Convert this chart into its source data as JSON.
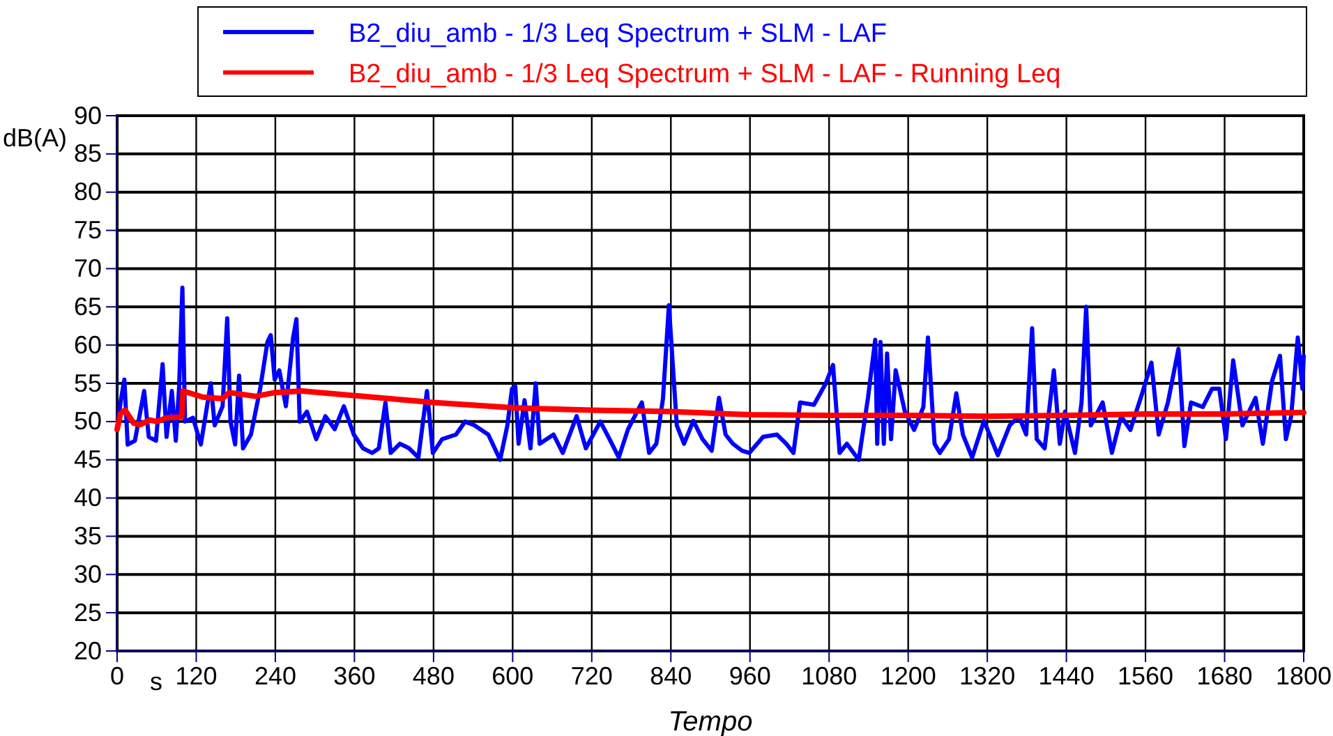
{
  "chart_data": {
    "type": "line",
    "xlabel": "Tempo",
    "ylabel": "dB(A)",
    "annotations": [
      "s"
    ],
    "xlim": [
      0,
      1800
    ],
    "xticks": [
      0,
      120,
      240,
      360,
      480,
      600,
      720,
      840,
      960,
      1080,
      1200,
      1320,
      1440,
      1560,
      1680,
      1800
    ],
    "ylim": [
      20,
      90
    ],
    "yticks": [
      20,
      25,
      30,
      35,
      40,
      45,
      50,
      55,
      60,
      65,
      70,
      75,
      80,
      85,
      90
    ],
    "grid": true,
    "legend": "top",
    "line_style": "solid",
    "marker": "none",
    "series": [
      {
        "name": "B2_diu_amb - 1/3 Leq Spectrum + SLM - LAF",
        "color": "#0000ff",
        "x": [
          0,
          6,
          11,
          16,
          27,
          41,
          48,
          59,
          69,
          75,
          83,
          89,
          94,
          99,
          103,
          115,
          127,
          142,
          148,
          160,
          167,
          172,
          179,
          185,
          191,
          203,
          217,
          228,
          233,
          239,
          246,
          256,
          267,
          272,
          277,
          288,
          302,
          316,
          330,
          344,
          359,
          373,
          387,
          397,
          407,
          415,
          429,
          443,
          457,
          470,
          479,
          493,
          514,
          528,
          542,
          563,
          581,
          592,
          599,
          604,
          609,
          618,
          627,
          635,
          641,
          662,
          676,
          697,
          711,
          733,
          747,
          761,
          775,
          796,
          807,
          818,
          828,
          837,
          849,
          860,
          874,
          888,
          902,
          913,
          923,
          934,
          948,
          959,
          980,
          1001,
          1015,
          1026,
          1036,
          1057,
          1075,
          1086,
          1096,
          1107,
          1125,
          1139,
          1150,
          1153,
          1158,
          1163,
          1168,
          1174,
          1181,
          1195,
          1209,
          1223,
          1230,
          1240,
          1248,
          1262,
          1273,
          1283,
          1297,
          1315,
          1336,
          1354,
          1368,
          1379,
          1388,
          1395,
          1407,
          1421,
          1430,
          1438,
          1453,
          1463,
          1470,
          1477,
          1495,
          1509,
          1523,
          1537,
          1555,
          1569,
          1580,
          1594,
          1610,
          1619,
          1629,
          1647,
          1661,
          1672,
          1682,
          1693,
          1707,
          1727,
          1738,
          1752,
          1764,
          1773,
          1781,
          1791,
          1798,
          1800
        ],
        "values": [
          49,
          53,
          55.5,
          47,
          47.5,
          54,
          48,
          47.5,
          57.5,
          48,
          54,
          47.5,
          54.5,
          67.5,
          50,
          50.5,
          47,
          55,
          49.5,
          52,
          63.5,
          50,
          47,
          56,
          46.5,
          48.3,
          54.3,
          60.4,
          61.3,
          55.5,
          56.7,
          52,
          61,
          63.4,
          50,
          51.3,
          47.7,
          50.7,
          49,
          52,
          48.3,
          46.5,
          45.9,
          46.5,
          52.5,
          45.9,
          47.1,
          46.5,
          45.3,
          54,
          45.9,
          47.7,
          48.3,
          50,
          49.5,
          48.3,
          45,
          49.5,
          54.3,
          54.6,
          47.1,
          52.8,
          46.5,
          55,
          47.1,
          48.3,
          45.9,
          50.7,
          46.5,
          50,
          47.7,
          45.3,
          49,
          52.5,
          45.9,
          47.1,
          53,
          65.2,
          49.5,
          47.1,
          50.1,
          47.7,
          46.2,
          53.1,
          48.3,
          47.1,
          46.2,
          45.9,
          48,
          48.3,
          47.1,
          45.9,
          52.5,
          52.2,
          55,
          57.4,
          45.9,
          47.1,
          45,
          53.1,
          60.7,
          47.1,
          60.4,
          47.1,
          58.9,
          47.7,
          56.7,
          51.3,
          48.9,
          51.9,
          61,
          47.1,
          45.9,
          47.7,
          53.7,
          48.3,
          45.3,
          50.1,
          45.6,
          49.5,
          50.7,
          48.3,
          62.2,
          47.7,
          46.5,
          56.7,
          47.1,
          51.3,
          45.9,
          52.5,
          65,
          49.5,
          52.5,
          45.9,
          50.7,
          48.9,
          53.7,
          57.7,
          48.3,
          52.5,
          59.5,
          46.8,
          52.5,
          51.9,
          54.3,
          54.3,
          47.7,
          58,
          49.5,
          53.1,
          47.1,
          55.3,
          58.6,
          47.7,
          50.7,
          61,
          54.3,
          58.6
        ]
      },
      {
        "name": "B2_diu_amb - 1/3 Leq Spectrum + SLM - LAF - Running Leq",
        "color": "#ff0000",
        "x": [
          0,
          5,
          12,
          25,
          35,
          50,
          60,
          75,
          98,
          100,
          130,
          160,
          170,
          210,
          240,
          280,
          480,
          600,
          720,
          840,
          960,
          1080,
          1200,
          1320,
          1440,
          1560,
          1680,
          1800
        ],
        "values": [
          49,
          51,
          51.5,
          49.8,
          49.6,
          50.2,
          50,
          50.5,
          50.6,
          54,
          53.2,
          53,
          53.8,
          53.3,
          53.8,
          54,
          52.5,
          51.8,
          51.5,
          51.3,
          50.9,
          50.8,
          50.8,
          50.7,
          50.8,
          51,
          51,
          51.2
        ]
      }
    ]
  }
}
